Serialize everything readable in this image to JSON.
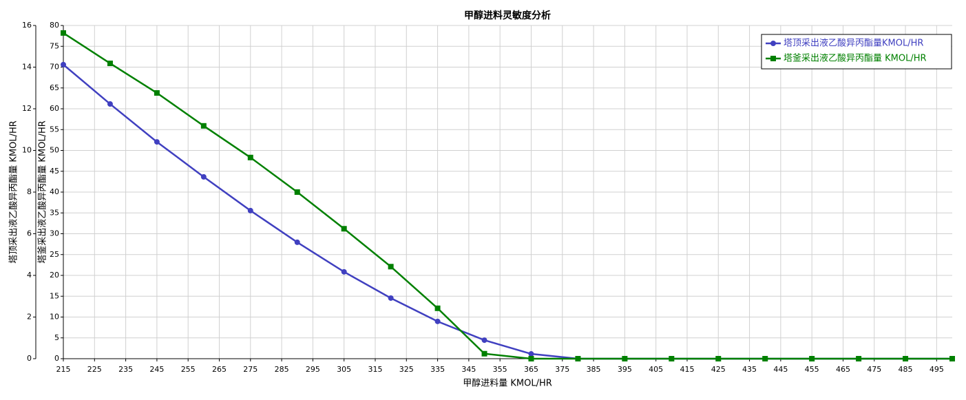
{
  "chart_data": {
    "type": "line",
    "title": "甲醇进料灵敏度分析",
    "xlabel": "甲醇进料量 KMOL/HR",
    "ylabel": "塔顶采出液乙酸异丙酯量 KMOL/HR",
    "y2label": "塔釜采出液乙酸异丙酯量 KMOL/HR",
    "x": [
      215,
      230,
      245,
      260,
      275,
      290,
      305,
      320,
      335,
      350,
      365,
      380,
      395,
      410,
      425,
      440,
      455,
      470,
      485,
      500
    ],
    "xlim": [
      215,
      500
    ],
    "xticks": [
      215,
      225,
      235,
      245,
      255,
      265,
      275,
      285,
      295,
      305,
      315,
      325,
      335,
      345,
      355,
      365,
      375,
      385,
      395,
      405,
      415,
      425,
      435,
      445,
      455,
      465,
      475,
      485,
      495
    ],
    "ylim": [
      0,
      16
    ],
    "yticks": [
      0,
      2,
      4,
      6,
      8,
      10,
      12,
      14,
      16
    ],
    "y2lim": [
      0,
      80
    ],
    "y2ticks": [
      0,
      5,
      10,
      15,
      20,
      25,
      30,
      35,
      40,
      45,
      50,
      55,
      60,
      65,
      70,
      75,
      80
    ],
    "grid": true,
    "legend": "top-right",
    "series": [
      {
        "name": "塔顶采出液乙酸异丙酯量KMOL/HR",
        "color": "#4040c0",
        "marker": "circle",
        "values": [
          14.12,
          12.23,
          10.41,
          8.73,
          7.11,
          5.59,
          4.17,
          2.91,
          1.79,
          0.89,
          0.23,
          0,
          0,
          0,
          0,
          0,
          0,
          0,
          0,
          0
        ]
      },
      {
        "name": "塔釜采出液乙酸异丙酯量 KMOL/HR",
        "color": "#008000",
        "marker": "square",
        "axis": "y2",
        "values": [
          78.2,
          70.9,
          63.8,
          55.9,
          48.3,
          40.0,
          31.2,
          22.1,
          12.1,
          1.2,
          0,
          0,
          0,
          0,
          0,
          0,
          0,
          0,
          0,
          0
        ]
      }
    ]
  }
}
